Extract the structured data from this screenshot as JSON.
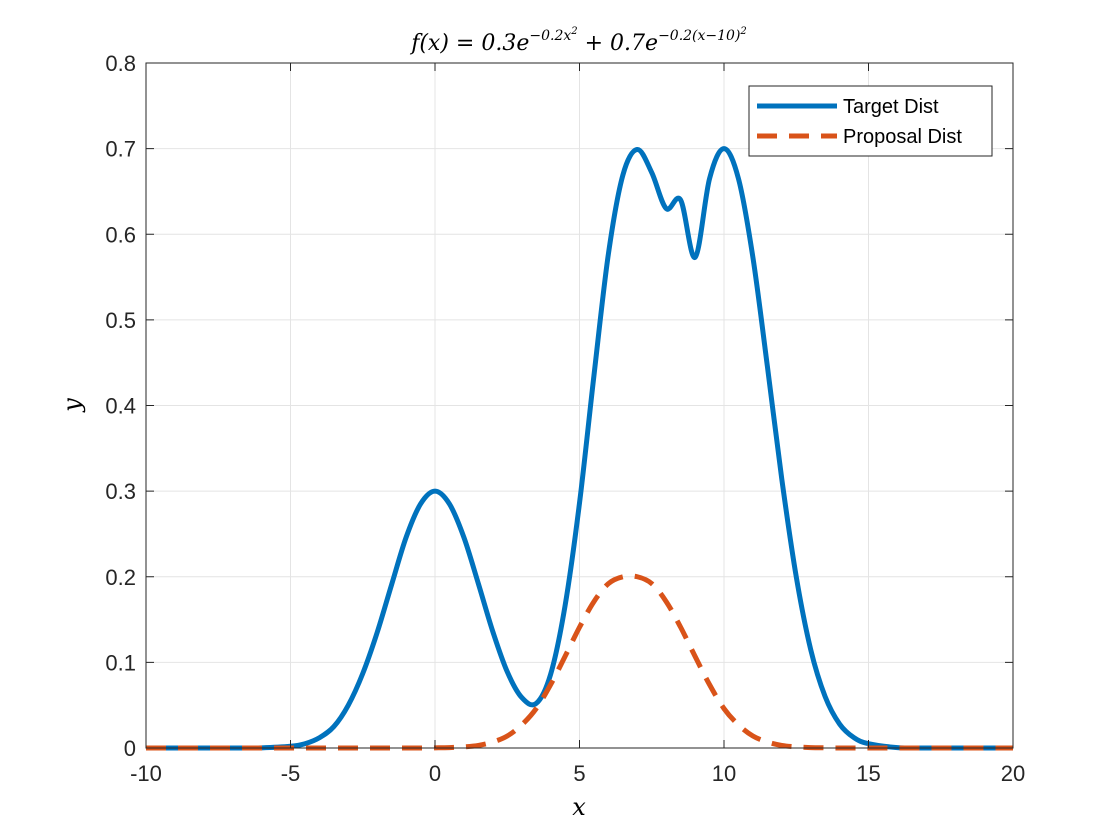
{
  "chart_data": {
    "type": "line",
    "title": {
      "lhs": "f(x) = 0.3e",
      "exp1": "−0.2x",
      "exp1_power": "2",
      "mid": " + 0.7e",
      "exp2": "−0.2(x−10)",
      "exp2_power": "2"
    },
    "xlabel": "x",
    "ylabel": "y",
    "xlim": [
      -10,
      20
    ],
    "ylim": [
      0,
      0.8
    ],
    "xticks": [
      -10,
      -5,
      0,
      5,
      10,
      15,
      20
    ],
    "xtick_labels": [
      "-10",
      "-5",
      "0",
      "5",
      "10",
      "15",
      "20"
    ],
    "yticks": [
      0,
      0.1,
      0.2,
      0.3,
      0.4,
      0.5,
      0.6,
      0.7,
      0.8
    ],
    "ytick_labels": [
      "0",
      "0.1",
      "0.2",
      "0.3",
      "0.4",
      "0.5",
      "0.6",
      "0.7",
      "0.8"
    ],
    "grid": true,
    "legend_position": "top-right",
    "x": [
      -10,
      -9,
      -8,
      -7,
      -6,
      -5,
      -4.5,
      -4,
      -3.5,
      -3,
      -2.5,
      -2,
      -1.5,
      -1,
      -0.5,
      0,
      0.5,
      1,
      1.5,
      2,
      2.5,
      3,
      3.5,
      4,
      4.5,
      5,
      5.5,
      6,
      6.5,
      7,
      7.5,
      8,
      8.5,
      9,
      9.5,
      10,
      10.5,
      11,
      11.5,
      12,
      12.5,
      13,
      13.5,
      14,
      14.5,
      15,
      16,
      17,
      18,
      19,
      20
    ],
    "series": [
      {
        "name": "Target Dist",
        "color": "#0072BD",
        "style": "solid",
        "values": [
          0.0,
          0.0,
          0.0,
          0.0,
          0.0002,
          0.002,
          0.005,
          0.012,
          0.025,
          0.05,
          0.087,
          0.135,
          0.191,
          0.246,
          0.285,
          0.3,
          0.285,
          0.246,
          0.192,
          0.136,
          0.089,
          0.059,
          0.052,
          0.086,
          0.166,
          0.286,
          0.435,
          0.577,
          0.669,
          0.699,
          0.672,
          0.63,
          0.64,
          0.573,
          0.665,
          0.7,
          0.665,
          0.573,
          0.446,
          0.314,
          0.2,
          0.115,
          0.06,
          0.028,
          0.012,
          0.005,
          0.0005,
          0.0,
          0.0,
          0.0,
          0.0
        ]
      },
      {
        "name": "Proposal Dist",
        "color": "#D95319",
        "style": "dashed",
        "values": [
          0.0,
          0.0,
          0.0,
          0.0,
          0.0,
          0.0,
          0.0,
          0.0,
          0.0,
          0.0,
          0.0,
          0.0,
          0.0,
          0.0,
          0.0,
          0.0002,
          0.0005,
          0.0013,
          0.003,
          0.007,
          0.014,
          0.027,
          0.046,
          0.074,
          0.107,
          0.141,
          0.171,
          0.192,
          0.2,
          0.2,
          0.192,
          0.171,
          0.141,
          0.107,
          0.074,
          0.046,
          0.027,
          0.014,
          0.007,
          0.003,
          0.0013,
          0.0005,
          0.0002,
          0.0,
          0.0,
          0.0,
          0.0,
          0.0,
          0.0,
          0.0,
          0.0
        ]
      }
    ]
  }
}
